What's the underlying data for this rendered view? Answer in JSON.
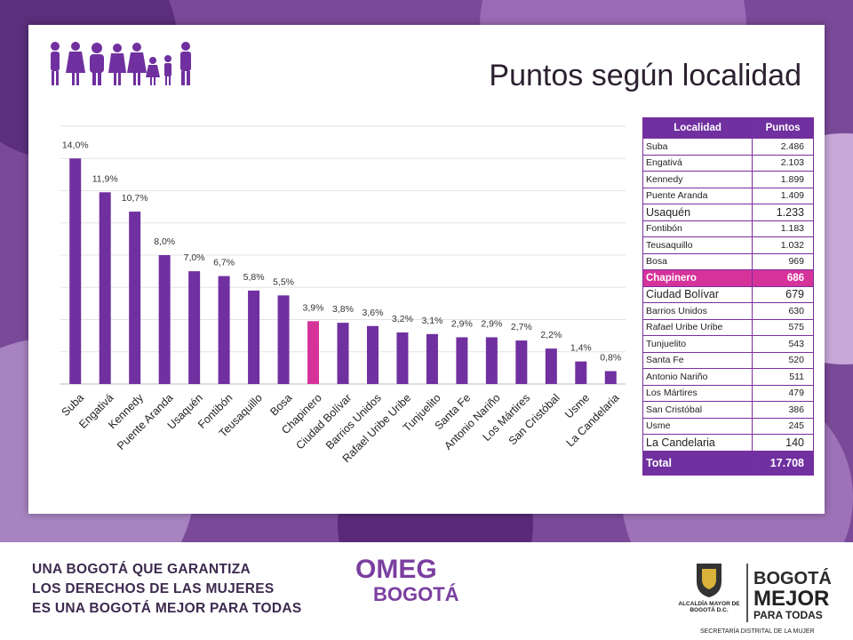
{
  "slide": {
    "title": "Puntos según localidad",
    "accent_color": "#7030a0",
    "highlight_color": "#d6339a"
  },
  "table": {
    "headers": [
      "Localidad",
      "Puntos"
    ],
    "rows": [
      {
        "name": "Suba",
        "value": "2.486"
      },
      {
        "name": "Engativá",
        "value": "2.103"
      },
      {
        "name": "Kennedy",
        "value": "1.899"
      },
      {
        "name": "Puente Aranda",
        "value": "1.409"
      },
      {
        "name": "Usaquén",
        "value": "1.233"
      },
      {
        "name": "Fontibón",
        "value": "1.183"
      },
      {
        "name": "Teusaquillo",
        "value": "1.032"
      },
      {
        "name": "Bosa",
        "value": "969"
      },
      {
        "name": "Chapinero",
        "value": "686"
      },
      {
        "name": "Ciudad Bolívar",
        "value": "679"
      },
      {
        "name": "Barrios Unidos",
        "value": "630"
      },
      {
        "name": "Rafael Uribe Uribe",
        "value": "575"
      },
      {
        "name": "Tunjuelito",
        "value": "543"
      },
      {
        "name": "Santa Fe",
        "value": "520"
      },
      {
        "name": "Antonio Nariño",
        "value": "511"
      },
      {
        "name": "Los Mártires",
        "value": "479"
      },
      {
        "name": "San Cristóbal",
        "value": "386"
      },
      {
        "name": "Usme",
        "value": "245"
      },
      {
        "name": "La Candelaria",
        "value": "140"
      }
    ],
    "total_label": "Total",
    "total_value": "17.708"
  },
  "chart_data": {
    "type": "bar",
    "categories": [
      "Suba",
      "Engativá",
      "Kennedy",
      "Puente Aranda",
      "Usaquén",
      "Fontibón",
      "Teusaquillo",
      "Bosa",
      "Chapinero",
      "Ciudad Bolívar",
      "Barrios Unidos",
      "Rafael Uribe Uribe",
      "Tunjuelito",
      "Santa Fe",
      "Antonio Nariño",
      "Los Mártires",
      "San Cristóbal",
      "Usme",
      "La Candelaria"
    ],
    "values": [
      14.0,
      11.9,
      10.7,
      8.0,
      7.0,
      6.7,
      5.8,
      5.5,
      3.9,
      3.8,
      3.6,
      3.2,
      3.1,
      2.9,
      2.9,
      2.7,
      2.2,
      1.4,
      0.8
    ],
    "data_labels": [
      "14,0%",
      "11,9%",
      "10,7%",
      "8,0%",
      "7,0%",
      "6,7%",
      "5,8%",
      "5,5%",
      "3,9%",
      "3,8%",
      "3,6%",
      "3,2%",
      "3,1%",
      "2,9%",
      "2,9%",
      "2,7%",
      "2,2%",
      "1,4%",
      "0,8%"
    ],
    "highlight_category": "Chapinero",
    "bar_color": "#7030a0",
    "highlight_bar_color": "#d6339a",
    "ylim": [
      0,
      16
    ],
    "grid": true,
    "title": "",
    "xlabel": "",
    "ylabel": ""
  },
  "footer": {
    "slogan_lines": [
      "UNA BOGOTÁ QUE GARANTIZA",
      "LOS DERECHOS DE LAS MUJERES",
      "ES UNA BOGOTÁ MEJOR PARA TODAS"
    ],
    "omeg_line1": "OMEG",
    "omeg_line2": "BOGOTÁ",
    "alcaldia": "ALCALDÍA MAYOR DE BOGOTÁ D.C.",
    "bogota_line1": "BOGOTÁ",
    "bogota_line2": "MEJOR",
    "bogota_line3": "PARA TODAS",
    "secretaria": "SECRETARÍA DISTRITAL DE LA MUJER"
  }
}
